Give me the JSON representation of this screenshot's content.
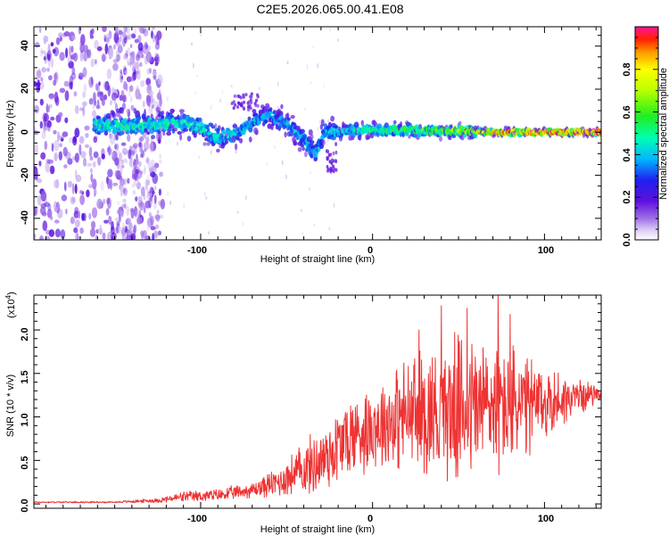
{
  "title": "C2E5.2026.065.00.41.E08",
  "chart_data": [
    {
      "type": "heatmap",
      "name": "spectrogram",
      "xlabel": "Height of straight line (km)",
      "ylabel": "Frequency (Hz)",
      "xlim": [
        -197,
        133
      ],
      "ylim": [
        -50,
        49
      ],
      "xticks": [
        -100,
        0,
        100
      ],
      "xtick_labels": [
        "-100",
        "0",
        "100"
      ],
      "yticks": [
        -40,
        -20,
        0,
        20,
        40
      ],
      "ytick_labels": [
        "-40",
        "-20",
        "0",
        "20",
        "40"
      ],
      "colorbar": {
        "label": "Normalized spectral amplitude",
        "range": [
          0.0,
          1.0
        ],
        "ticks": [
          0.0,
          0.2,
          0.4,
          0.6,
          0.8
        ],
        "tick_labels": [
          "0.0",
          "0.2",
          "0.4",
          "0.6",
          "0.8"
        ]
      },
      "ridge": [
        {
          "x": -160,
          "y": 3.5
        },
        {
          "x": -140,
          "y": 3
        },
        {
          "x": -120,
          "y": 4
        },
        {
          "x": -110,
          "y": 4.5
        },
        {
          "x": -100,
          "y": 2
        },
        {
          "x": -90,
          "y": -2
        },
        {
          "x": -80,
          "y": -1
        },
        {
          "x": -70,
          "y": 4
        },
        {
          "x": -60,
          "y": 8
        },
        {
          "x": -50,
          "y": 4
        },
        {
          "x": -40,
          "y": -3
        },
        {
          "x": -33,
          "y": -10
        },
        {
          "x": -28,
          "y": 0
        },
        {
          "x": -20,
          "y": 0
        },
        {
          "x": -10,
          "y": 1
        },
        {
          "x": 0,
          "y": 1
        },
        {
          "x": 20,
          "y": 1
        },
        {
          "x": 50,
          "y": 0.5
        },
        {
          "x": 75,
          "y": 0
        },
        {
          "x": 100,
          "y": 0
        },
        {
          "x": 133,
          "y": 0
        }
      ],
      "ridge_amplitude": [
        {
          "x": -160,
          "a": 0.45
        },
        {
          "x": -120,
          "a": 0.45
        },
        {
          "x": -90,
          "a": 0.42
        },
        {
          "x": -60,
          "a": 0.35
        },
        {
          "x": -30,
          "a": 0.38
        },
        {
          "x": 0,
          "a": 0.5
        },
        {
          "x": 40,
          "a": 0.58
        },
        {
          "x": 75,
          "a": 0.8
        },
        {
          "x": 133,
          "a": 0.95
        }
      ]
    },
    {
      "type": "line",
      "name": "snr",
      "xlabel": "Height of straight line (km)",
      "ylabel": "SNR (10 * v/v)",
      "exponent_label": "(x10",
      "exponent_value": "4",
      "xlim": [
        -197,
        133
      ],
      "ylim": [
        -0.05,
        2.4
      ],
      "xticks": [
        -100,
        0,
        100
      ],
      "xtick_labels": [
        "-100",
        "0",
        "100"
      ],
      "yticks": [
        0.0,
        0.5,
        1.0,
        1.5,
        2.0
      ],
      "ytick_labels": [
        "0.0",
        "0.5",
        "1.0",
        "1.5",
        "2.0"
      ],
      "line_color": "#ee3333",
      "envelope": [
        {
          "x": -197,
          "mean": 0.02,
          "amp": 0.01
        },
        {
          "x": -150,
          "mean": 0.02,
          "amp": 0.01
        },
        {
          "x": -125,
          "mean": 0.04,
          "amp": 0.03
        },
        {
          "x": -110,
          "mean": 0.08,
          "amp": 0.07
        },
        {
          "x": -90,
          "mean": 0.1,
          "amp": 0.08
        },
        {
          "x": -70,
          "mean": 0.16,
          "amp": 0.1
        },
        {
          "x": -55,
          "mean": 0.25,
          "amp": 0.2
        },
        {
          "x": -45,
          "mean": 0.35,
          "amp": 0.3
        },
        {
          "x": -30,
          "mean": 0.5,
          "amp": 0.45
        },
        {
          "x": -15,
          "mean": 0.75,
          "amp": 0.55
        },
        {
          "x": 0,
          "mean": 0.9,
          "amp": 0.55
        },
        {
          "x": 15,
          "mean": 1.0,
          "amp": 0.7
        },
        {
          "x": 30,
          "mean": 1.05,
          "amp": 0.85
        },
        {
          "x": 50,
          "mean": 1.1,
          "amp": 0.95
        },
        {
          "x": 70,
          "mean": 1.15,
          "amp": 0.95
        },
        {
          "x": 90,
          "mean": 1.1,
          "amp": 0.7
        },
        {
          "x": 110,
          "mean": 1.2,
          "amp": 0.35
        },
        {
          "x": 133,
          "mean": 1.28,
          "amp": 0.08
        }
      ],
      "peaks": [
        {
          "x": 73,
          "y": 2.4
        },
        {
          "x": 40,
          "y": 2.28
        },
        {
          "x": 55,
          "y": 2.25
        },
        {
          "x": 80,
          "y": 2.18
        },
        {
          "x": 27,
          "y": 2.0
        }
      ]
    }
  ]
}
